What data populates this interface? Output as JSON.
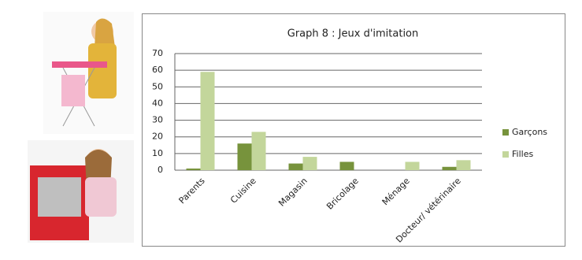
{
  "chart_data": {
    "type": "bar",
    "title": "Graph 8 : Jeux d'imitation",
    "categories": [
      "Parents",
      "Cuisine",
      "Magasin",
      "Bricolage",
      "Ménage",
      "Docteur/ vétérinaire"
    ],
    "series": [
      {
        "name": "Garçons",
        "color": "#77933c",
        "values": [
          1,
          16,
          4,
          5,
          0,
          2
        ]
      },
      {
        "name": "Filles",
        "color": "#c3d69b",
        "values": [
          59,
          23,
          8,
          0,
          5,
          6
        ]
      }
    ],
    "ylim": [
      0,
      70
    ],
    "yticks": [
      0,
      10,
      20,
      30,
      40,
      50,
      60,
      70
    ],
    "grid": true,
    "legend": "right"
  }
}
